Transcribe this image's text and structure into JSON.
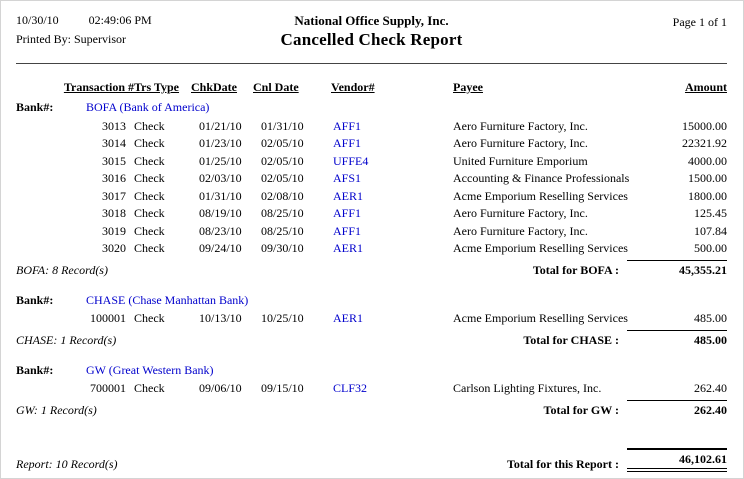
{
  "header": {
    "date": "10/30/10",
    "time": "02:49:06 PM",
    "printed_by": "Printed By: Supervisor",
    "company": "National Office Supply, Inc.",
    "title": "Cancelled Check Report",
    "page": "Page 1 of 1"
  },
  "columns": [
    "Transaction #",
    "Trs Type",
    "ChkDate",
    "Cnl Date",
    "Vendor#",
    "Payee",
    "Amount"
  ],
  "bank_label": "Bank#:",
  "colors": {
    "link_blue": "#0000CC",
    "text": "#000000"
  },
  "sections": [
    {
      "bank": "BOFA (Bank of America)",
      "rows": [
        {
          "transaction": "3013",
          "type": "Check",
          "chk_date": "01/21/10",
          "cnl_date": "01/31/10",
          "vendor": "AFF1",
          "payee": "Aero Furniture Factory, Inc.",
          "amount": "15000.00"
        },
        {
          "transaction": "3014",
          "type": "Check",
          "chk_date": "01/23/10",
          "cnl_date": "02/05/10",
          "vendor": "AFF1",
          "payee": "Aero Furniture Factory, Inc.",
          "amount": "22321.92"
        },
        {
          "transaction": "3015",
          "type": "Check",
          "chk_date": "01/25/10",
          "cnl_date": "02/05/10",
          "vendor": "UFFE4",
          "payee": "United Furniture Emporium",
          "amount": "4000.00"
        },
        {
          "transaction": "3016",
          "type": "Check",
          "chk_date": "02/03/10",
          "cnl_date": "02/05/10",
          "vendor": "AFS1",
          "payee": "Accounting & Finance Professionals",
          "amount": "1500.00"
        },
        {
          "transaction": "3017",
          "type": "Check",
          "chk_date": "01/31/10",
          "cnl_date": "02/08/10",
          "vendor": "AER1",
          "payee": "Acme Emporium Reselling Services",
          "amount": "1800.00"
        },
        {
          "transaction": "3018",
          "type": "Check",
          "chk_date": "08/19/10",
          "cnl_date": "08/25/10",
          "vendor": "AFF1",
          "payee": "Aero Furniture Factory, Inc.",
          "amount": "125.45"
        },
        {
          "transaction": "3019",
          "type": "Check",
          "chk_date": "08/23/10",
          "cnl_date": "08/25/10",
          "vendor": "AFF1",
          "payee": "Aero Furniture Factory, Inc.",
          "amount": "107.84"
        },
        {
          "transaction": "3020",
          "type": "Check",
          "chk_date": "09/24/10",
          "cnl_date": "09/30/10",
          "vendor": "AER1",
          "payee": "Acme Emporium Reselling Services",
          "amount": "500.00"
        }
      ],
      "record_count": "BOFA: 8 Record(s)",
      "total_label": "Total for BOFA :",
      "total": "45,355.21"
    },
    {
      "bank": "CHASE (Chase Manhattan Bank)",
      "rows": [
        {
          "transaction": "100001",
          "type": "Check",
          "chk_date": "10/13/10",
          "cnl_date": "10/25/10",
          "vendor": "AER1",
          "payee": "Acme Emporium Reselling Services",
          "amount": "485.00"
        }
      ],
      "record_count": "CHASE: 1 Record(s)",
      "total_label": "Total for CHASE :",
      "total": "485.00"
    },
    {
      "bank": "GW (Great Western Bank)",
      "rows": [
        {
          "transaction": "700001",
          "type": "Check",
          "chk_date": "09/06/10",
          "cnl_date": "09/15/10",
          "vendor": "CLF32",
          "payee": "Carlson Lighting Fixtures, Inc.",
          "amount": "262.40"
        }
      ],
      "record_count": "GW: 1 Record(s)",
      "total_label": "Total for GW :",
      "total": "262.40"
    }
  ],
  "report": {
    "record_count": "Report: 10 Record(s)",
    "total_label": "Total for this Report :",
    "total": "46,102.61"
  }
}
